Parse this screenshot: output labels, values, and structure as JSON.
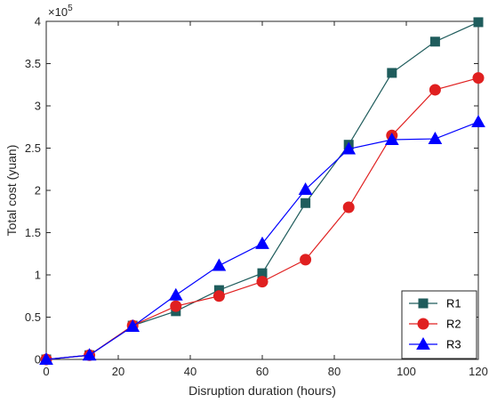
{
  "chart_data": {
    "type": "line",
    "title": "",
    "xlabel": "Disruption duration (hours)",
    "ylabel": "Total cost (yuan)",
    "y_exponent_label": "×10",
    "y_exponent_power": "5",
    "xlim": [
      0,
      120
    ],
    "ylim": [
      0,
      4
    ],
    "x_ticks": [
      0,
      20,
      40,
      60,
      80,
      100,
      120
    ],
    "x_tick_labels": [
      "0",
      "20",
      "40",
      "60",
      "80",
      "100",
      "120"
    ],
    "y_ticks": [
      0,
      0.5,
      1,
      1.5,
      2,
      2.5,
      3,
      3.5,
      4
    ],
    "y_tick_labels": [
      "0",
      "0.5",
      "1",
      "1.5",
      "2",
      "2.5",
      "3",
      "3.5",
      "4"
    ],
    "grid": false,
    "legend_position": "bottom-right",
    "x": [
      0,
      12,
      24,
      36,
      48,
      60,
      72,
      84,
      96,
      108,
      120
    ],
    "series": [
      {
        "name": "R1",
        "marker": "square",
        "color": "#1f5c5c",
        "values": [
          0,
          0.05,
          0.4,
          0.57,
          0.82,
          1.02,
          1.85,
          2.54,
          3.39,
          3.76,
          3.99
        ]
      },
      {
        "name": "R2",
        "marker": "circle",
        "color": "#e02020",
        "values": [
          0,
          0.05,
          0.4,
          0.63,
          0.75,
          0.92,
          1.18,
          1.8,
          2.65,
          3.19,
          3.33
        ]
      },
      {
        "name": "R3",
        "marker": "triangle",
        "color": "#0000ff",
        "values": [
          0,
          0.05,
          0.39,
          0.76,
          1.11,
          1.37,
          2.01,
          2.49,
          2.6,
          2.61,
          2.81
        ]
      }
    ]
  }
}
